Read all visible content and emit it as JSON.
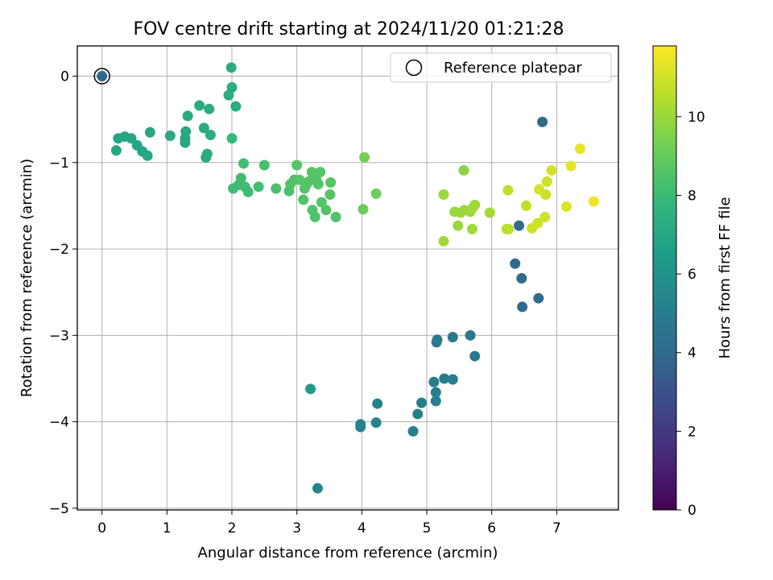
{
  "chart_data": {
    "type": "scatter",
    "title": "FOV centre drift starting at 2024/11/20 01:21:28",
    "xlabel": "Angular distance from reference (arcmin)",
    "ylabel": "Rotation from reference (arcmin)",
    "xlim": [
      -0.38,
      7.95
    ],
    "ylim": [
      -5.02,
      0.35
    ],
    "xticks": [
      0,
      1,
      2,
      3,
      4,
      5,
      6,
      7
    ],
    "yticks": [
      0,
      -1,
      -2,
      -3,
      -4,
      -5
    ],
    "grid": true,
    "legend": {
      "placement": "top-right",
      "entries": [
        "Reference platepar"
      ]
    },
    "colorbar": {
      "label": "Hours from first FF file",
      "colormap": "viridis",
      "range": [
        0,
        11.8
      ],
      "ticks": [
        0,
        2,
        4,
        6,
        8,
        10
      ]
    },
    "reference_point": {
      "x": 0,
      "y": 0
    },
    "points": [
      {
        "x": 0.0,
        "y": 0.0,
        "c": 4.0
      },
      {
        "x": 0.22,
        "y": -0.86,
        "c": 7.0
      },
      {
        "x": 0.25,
        "y": -0.72,
        "c": 7.0
      },
      {
        "x": 0.35,
        "y": -0.7,
        "c": 7.0
      },
      {
        "x": 0.45,
        "y": -0.72,
        "c": 7.0
      },
      {
        "x": 0.54,
        "y": -0.8,
        "c": 7.0
      },
      {
        "x": 0.62,
        "y": -0.87,
        "c": 7.0
      },
      {
        "x": 0.7,
        "y": -0.92,
        "c": 7.0
      },
      {
        "x": 0.74,
        "y": -0.65,
        "c": 7.1
      },
      {
        "x": 1.05,
        "y": -0.69,
        "c": 7.1
      },
      {
        "x": 1.28,
        "y": -0.77,
        "c": 7.1
      },
      {
        "x": 1.28,
        "y": -0.72,
        "c": 7.1
      },
      {
        "x": 1.29,
        "y": -0.64,
        "c": 7.1
      },
      {
        "x": 1.32,
        "y": -0.46,
        "c": 7.2
      },
      {
        "x": 1.5,
        "y": -0.34,
        "c": 7.2
      },
      {
        "x": 1.57,
        "y": -0.6,
        "c": 7.2
      },
      {
        "x": 1.6,
        "y": -0.94,
        "c": 7.3
      },
      {
        "x": 1.62,
        "y": -0.9,
        "c": 7.3
      },
      {
        "x": 1.65,
        "y": -0.38,
        "c": 7.3
      },
      {
        "x": 1.67,
        "y": -0.68,
        "c": 7.3
      },
      {
        "x": 1.95,
        "y": -0.22,
        "c": 7.3
      },
      {
        "x": 1.99,
        "y": 0.1,
        "c": 7.3
      },
      {
        "x": 2.0,
        "y": -0.13,
        "c": 7.3
      },
      {
        "x": 2.06,
        "y": -0.35,
        "c": 7.2
      },
      {
        "x": 2.0,
        "y": -0.72,
        "c": 7.9
      },
      {
        "x": 2.02,
        "y": -1.3,
        "c": 8.1
      },
      {
        "x": 2.1,
        "y": -1.26,
        "c": 8.1
      },
      {
        "x": 2.14,
        "y": -1.18,
        "c": 8.1
      },
      {
        "x": 2.18,
        "y": -1.01,
        "c": 8.2
      },
      {
        "x": 2.2,
        "y": -1.28,
        "c": 8.1
      },
      {
        "x": 2.25,
        "y": -1.34,
        "c": 8.1
      },
      {
        "x": 2.41,
        "y": -1.28,
        "c": 8.2
      },
      {
        "x": 2.5,
        "y": -1.03,
        "c": 8.3
      },
      {
        "x": 2.68,
        "y": -1.3,
        "c": 8.4
      },
      {
        "x": 2.88,
        "y": -1.33,
        "c": 8.4
      },
      {
        "x": 2.9,
        "y": -1.25,
        "c": 8.5
      },
      {
        "x": 2.96,
        "y": -1.2,
        "c": 8.5
      },
      {
        "x": 3.0,
        "y": -1.03,
        "c": 8.6
      },
      {
        "x": 3.04,
        "y": -1.2,
        "c": 8.6
      },
      {
        "x": 3.1,
        "y": -1.43,
        "c": 8.5
      },
      {
        "x": 3.12,
        "y": -1.3,
        "c": 8.6
      },
      {
        "x": 3.15,
        "y": -1.25,
        "c": 8.6
      },
      {
        "x": 3.18,
        "y": -1.22,
        "c": 8.6
      },
      {
        "x": 3.23,
        "y": -1.11,
        "c": 8.6
      },
      {
        "x": 3.24,
        "y": -1.55,
        "c": 8.5
      },
      {
        "x": 3.28,
        "y": -1.63,
        "c": 8.5
      },
      {
        "x": 3.3,
        "y": -1.2,
        "c": 8.6
      },
      {
        "x": 3.33,
        "y": -1.25,
        "c": 8.6
      },
      {
        "x": 3.36,
        "y": -1.11,
        "c": 8.6
      },
      {
        "x": 3.38,
        "y": -1.46,
        "c": 8.6
      },
      {
        "x": 3.45,
        "y": -1.55,
        "c": 8.6
      },
      {
        "x": 3.51,
        "y": -1.37,
        "c": 8.6
      },
      {
        "x": 3.52,
        "y": -1.23,
        "c": 8.6
      },
      {
        "x": 3.6,
        "y": -1.63,
        "c": 8.5
      },
      {
        "x": 4.02,
        "y": -1.54,
        "c": 9.1
      },
      {
        "x": 4.04,
        "y": -0.94,
        "c": 9.3
      },
      {
        "x": 4.22,
        "y": -1.36,
        "c": 9.1
      },
      {
        "x": 5.26,
        "y": -1.37,
        "c": 10.0
      },
      {
        "x": 5.26,
        "y": -1.91,
        "c": 10.1
      },
      {
        "x": 5.43,
        "y": -1.57,
        "c": 10.0
      },
      {
        "x": 5.48,
        "y": -1.73,
        "c": 10.0
      },
      {
        "x": 5.52,
        "y": -1.58,
        "c": 10.0
      },
      {
        "x": 5.57,
        "y": -1.09,
        "c": 9.7
      },
      {
        "x": 5.58,
        "y": -1.55,
        "c": 10.0
      },
      {
        "x": 5.67,
        "y": -1.57,
        "c": 10.1
      },
      {
        "x": 5.7,
        "y": -1.77,
        "c": 10.1
      },
      {
        "x": 5.71,
        "y": -1.52,
        "c": 10.1
      },
      {
        "x": 5.74,
        "y": -1.49,
        "c": 10.1
      },
      {
        "x": 5.97,
        "y": -1.58,
        "c": 10.2
      },
      {
        "x": 6.23,
        "y": -1.77,
        "c": 10.6
      },
      {
        "x": 6.25,
        "y": -1.32,
        "c": 10.6
      },
      {
        "x": 6.26,
        "y": -1.77,
        "c": 10.6
      },
      {
        "x": 6.53,
        "y": -1.5,
        "c": 10.7
      },
      {
        "x": 6.62,
        "y": -1.76,
        "c": 10.9
      },
      {
        "x": 6.71,
        "y": -1.7,
        "c": 10.9
      },
      {
        "x": 6.73,
        "y": -1.31,
        "c": 11.0
      },
      {
        "x": 6.82,
        "y": -1.63,
        "c": 10.9
      },
      {
        "x": 6.83,
        "y": -1.37,
        "c": 10.9
      },
      {
        "x": 6.85,
        "y": -1.22,
        "c": 10.9
      },
      {
        "x": 6.92,
        "y": -1.09,
        "c": 11.0
      },
      {
        "x": 7.15,
        "y": -1.51,
        "c": 11.2
      },
      {
        "x": 7.22,
        "y": -1.04,
        "c": 11.3
      },
      {
        "x": 7.36,
        "y": -0.84,
        "c": 11.4
      },
      {
        "x": 7.57,
        "y": -1.45,
        "c": 11.5
      },
      {
        "x": 6.78,
        "y": -0.53,
        "c": 4.1
      },
      {
        "x": 6.42,
        "y": -1.73,
        "c": 4.1
      },
      {
        "x": 6.36,
        "y": -2.17,
        "c": 4.1
      },
      {
        "x": 6.46,
        "y": -2.34,
        "c": 4.1
      },
      {
        "x": 6.47,
        "y": -2.67,
        "c": 4.1
      },
      {
        "x": 6.72,
        "y": -2.57,
        "c": 4.1
      },
      {
        "x": 5.16,
        "y": -3.05,
        "c": 4.8
      },
      {
        "x": 5.15,
        "y": -3.08,
        "c": 4.8
      },
      {
        "x": 5.4,
        "y": -3.02,
        "c": 4.8
      },
      {
        "x": 5.67,
        "y": -3.0,
        "c": 4.7
      },
      {
        "x": 5.74,
        "y": -3.24,
        "c": 4.7
      },
      {
        "x": 5.11,
        "y": -3.54,
        "c": 5.0
      },
      {
        "x": 5.27,
        "y": -3.5,
        "c": 4.9
      },
      {
        "x": 5.4,
        "y": -3.51,
        "c": 4.9
      },
      {
        "x": 5.14,
        "y": -3.66,
        "c": 5.0
      },
      {
        "x": 5.14,
        "y": -3.76,
        "c": 5.1
      },
      {
        "x": 4.92,
        "y": -3.78,
        "c": 5.1
      },
      {
        "x": 4.86,
        "y": -3.91,
        "c": 5.1
      },
      {
        "x": 4.79,
        "y": -4.11,
        "c": 5.2
      },
      {
        "x": 4.24,
        "y": -3.79,
        "c": 5.2
      },
      {
        "x": 4.22,
        "y": -4.01,
        "c": 5.3
      },
      {
        "x": 3.98,
        "y": -4.03,
        "c": 5.3
      },
      {
        "x": 3.98,
        "y": -4.06,
        "c": 5.3
      },
      {
        "x": 3.32,
        "y": -4.77,
        "c": 5.4
      },
      {
        "x": 3.21,
        "y": -3.62,
        "c": 6.4
      }
    ]
  }
}
